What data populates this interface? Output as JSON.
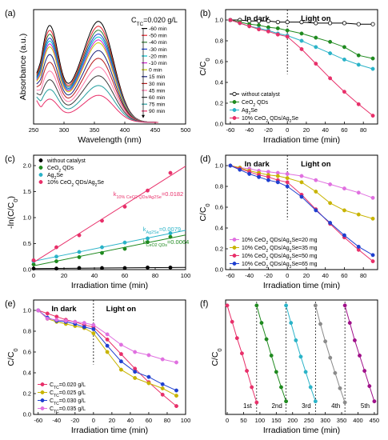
{
  "panels": [
    {
      "id": "a",
      "label": "(a)",
      "chart_data": {
        "type": "line",
        "xlabel": "Wavelength (nm)",
        "ylabel": "Absorbance (a.u.)",
        "xlim": [
          250,
          500
        ],
        "xticks": [
          250,
          300,
          350,
          400,
          450,
          500
        ],
        "yticks_shown": false,
        "annotation": "C_TC=0.020 g/L",
        "legend_position": "top-right",
        "series": [
          {
            "name": "-60 min",
            "color": "#000000",
            "peak1": 1.0,
            "peak2": 1.04
          },
          {
            "name": "-50 min",
            "color": "#e8202a",
            "peak1": 0.95,
            "peak2": 0.99
          },
          {
            "name": "-40 min",
            "color": "#2e7d32",
            "peak1": 0.91,
            "peak2": 0.95
          },
          {
            "name": "-30 min",
            "color": "#1e3fd0",
            "peak1": 0.87,
            "peak2": 0.91
          },
          {
            "name": "-20 min",
            "color": "#00c0d0",
            "peak1": 0.84,
            "peak2": 0.88
          },
          {
            "name": "-10 min",
            "color": "#d020d0",
            "peak1": 0.81,
            "peak2": 0.85
          },
          {
            "name": "0 min",
            "color": "#c8c800",
            "peak1": 0.78,
            "peak2": 0.82
          },
          {
            "name": "15 min",
            "color": "#1a237e",
            "peak1": 0.7,
            "peak2": 0.74
          },
          {
            "name": "30 min",
            "color": "#b71c1c",
            "peak1": 0.62,
            "peak2": 0.66
          },
          {
            "name": "45 min",
            "color": "#ff77aa",
            "peak1": 0.53,
            "peak2": 0.57
          },
          {
            "name": "60 min",
            "color": "#3c3c3c",
            "peak1": 0.44,
            "peak2": 0.48
          },
          {
            "name": "75 min",
            "color": "#26a0a0",
            "peak1": 0.34,
            "peak2": 0.38
          },
          {
            "name": "90 min",
            "color": "#e8306a",
            "peak1": 0.24,
            "peak2": 0.28
          }
        ]
      }
    },
    {
      "id": "b",
      "label": "(b)",
      "chart_data": {
        "type": "line",
        "xlabel": "Irradiation time (min)",
        "ylabel": "C/C0",
        "xlim": [
          -65,
          95
        ],
        "ylim": [
          0.0,
          1.1
        ],
        "xticks": [
          -60,
          -40,
          -20,
          0,
          20,
          40,
          60,
          80
        ],
        "yticks": [
          0.0,
          0.2,
          0.4,
          0.6,
          0.8,
          1.0
        ],
        "regions": [
          "In dark",
          "Light on"
        ],
        "divider_x": 0,
        "legend_position": "bottom-left",
        "x": [
          -60,
          -50,
          -40,
          -30,
          -20,
          -10,
          0,
          15,
          30,
          45,
          60,
          75,
          90
        ],
        "series": [
          {
            "name": "without catalyst",
            "color": "#000000",
            "marker": "circle-half",
            "values": [
              1.0,
              1.0,
              0.99,
              0.99,
              0.99,
              0.98,
              0.98,
              0.98,
              0.97,
              0.97,
              0.97,
              0.96,
              0.96
            ]
          },
          {
            "name": "CeO2 QDs",
            "color": "#1f8a1f",
            "marker": "circle",
            "values": [
              1.0,
              0.98,
              0.96,
              0.95,
              0.93,
              0.92,
              0.9,
              0.87,
              0.83,
              0.79,
              0.74,
              0.66,
              0.63
            ]
          },
          {
            "name": "Ag2Se",
            "color": "#2ab3c8",
            "marker": "circle",
            "values": [
              1.0,
              0.97,
              0.94,
              0.92,
              0.9,
              0.87,
              0.85,
              0.8,
              0.74,
              0.68,
              0.62,
              0.57,
              0.53
            ]
          },
          {
            "name": "10% CeO2 QDs/Ag2Se",
            "color": "#e8306a",
            "marker": "circle",
            "values": [
              1.0,
              0.97,
              0.94,
              0.91,
              0.89,
              0.86,
              0.84,
              0.72,
              0.58,
              0.44,
              0.31,
              0.19,
              0.08
            ]
          }
        ]
      }
    },
    {
      "id": "c",
      "label": "(c)",
      "chart_data": {
        "type": "scatter",
        "xlabel": "Irradiation time (min)",
        "ylabel": "-ln(C/C0)",
        "xlim": [
          0,
          100
        ],
        "ylim": [
          0.0,
          2.2
        ],
        "xticks": [
          0,
          20,
          40,
          60,
          80,
          100
        ],
        "yticks": [
          0.0,
          0.5,
          1.0,
          1.5,
          2.0
        ],
        "legend_position": "top-left",
        "series": [
          {
            "name": "without catalyst",
            "color": "#000000",
            "k_label": "",
            "x": [
              0,
              15,
              30,
              45,
              60,
              75,
              90
            ],
            "values": [
              0.02,
              0.02,
              0.03,
              0.03,
              0.03,
              0.04,
              0.04
            ]
          },
          {
            "name": "CeO2 QDs",
            "color": "#1f8a1f",
            "k_label": "kCeO2 QDs=0.0064",
            "x": [
              0,
              15,
              30,
              45,
              60,
              75,
              90
            ],
            "values": [
              0.1,
              0.16,
              0.24,
              0.32,
              0.4,
              0.53,
              0.63
            ]
          },
          {
            "name": "Ag2Se",
            "color": "#2ab3c8",
            "k_label": "kAg2Se=0.0079",
            "x": [
              0,
              15,
              30,
              45,
              60,
              75,
              90
            ],
            "values": [
              0.16,
              0.25,
              0.34,
              0.43,
              0.52,
              0.6,
              0.7
            ]
          },
          {
            "name": "10% CeO2 QDs/Ag2Se",
            "color": "#e8306a",
            "k_label": "k10% CeO2 QDs/Ag2Se=0.0182",
            "x": [
              0,
              15,
              30,
              45,
              60,
              75,
              90
            ],
            "values": [
              0.18,
              0.43,
              0.66,
              0.94,
              1.21,
              1.52,
              1.86
            ]
          }
        ]
      }
    },
    {
      "id": "d",
      "label": "(d)",
      "chart_data": {
        "type": "line",
        "xlabel": "Irradiation time (min)",
        "ylabel": "C/C0",
        "xlim": [
          -65,
          95
        ],
        "ylim": [
          0.0,
          1.1
        ],
        "xticks": [
          -60,
          -40,
          -20,
          0,
          20,
          40,
          60,
          80
        ],
        "yticks": [
          0.0,
          0.2,
          0.4,
          0.6,
          0.8,
          1.0
        ],
        "regions": [
          "In dark",
          "Light on"
        ],
        "divider_x": 0,
        "legend_position": "bottom-left",
        "x": [
          -60,
          -50,
          -40,
          -30,
          -20,
          -10,
          0,
          15,
          30,
          45,
          60,
          75,
          90
        ],
        "series": [
          {
            "name": "10% CeO2 QDs/Ag2Se=20 mg",
            "color": "#e070e0",
            "values": [
              1.0,
              0.98,
              0.97,
              0.95,
              0.94,
              0.93,
              0.92,
              0.9,
              0.86,
              0.82,
              0.78,
              0.74,
              0.69
            ]
          },
          {
            "name": "10% CeO2 QDs/Ag2Se=35 mg",
            "color": "#c8b400",
            "values": [
              1.0,
              0.98,
              0.95,
              0.93,
              0.91,
              0.9,
              0.88,
              0.84,
              0.75,
              0.64,
              0.57,
              0.53,
              0.49
            ]
          },
          {
            "name": "10% CeO2 QDs/Ag2Se=50 mg",
            "color": "#e8306a",
            "values": [
              1.0,
              0.97,
              0.94,
              0.91,
              0.89,
              0.86,
              0.84,
              0.72,
              0.58,
              0.44,
              0.31,
              0.19,
              0.08
            ]
          },
          {
            "name": "10% CeO2 QDs/Ag2Se=65 mg",
            "color": "#1e3fd0",
            "values": [
              1.0,
              0.96,
              0.92,
              0.89,
              0.86,
              0.84,
              0.8,
              0.7,
              0.57,
              0.45,
              0.33,
              0.22,
              0.14
            ]
          }
        ]
      }
    },
    {
      "id": "e",
      "label": "(e)",
      "chart_data": {
        "type": "line",
        "xlabel": "Irradiation time (min)",
        "ylabel": "C/C0",
        "xlim": [
          -65,
          100
        ],
        "ylim": [
          0.0,
          1.1
        ],
        "xticks": [
          -60,
          -40,
          -20,
          0,
          20,
          40,
          60,
          80,
          100
        ],
        "yticks": [
          0.0,
          0.2,
          0.4,
          0.6,
          0.8,
          1.0
        ],
        "regions": [
          "In dark",
          "Light on"
        ],
        "divider_x": 0,
        "legend_position": "bottom-left",
        "x": [
          -60,
          -50,
          -40,
          -30,
          -20,
          -10,
          0,
          15,
          30,
          45,
          60,
          75,
          90
        ],
        "series": [
          {
            "name": "CTC=0.020 g/L",
            "color": "#e8306a",
            "values": [
              1.0,
              0.97,
              0.94,
              0.91,
              0.89,
              0.86,
              0.84,
              0.72,
              0.58,
              0.44,
              0.31,
              0.19,
              0.08
            ]
          },
          {
            "name": "CTC=0.025 g/L",
            "color": "#c8b400",
            "values": [
              1.0,
              0.92,
              0.89,
              0.87,
              0.85,
              0.83,
              0.78,
              0.6,
              0.43,
              0.35,
              0.3,
              0.25,
              0.18
            ]
          },
          {
            "name": "CTC=0.030 g/L",
            "color": "#1e3fd0",
            "values": [
              1.0,
              0.93,
              0.9,
              0.89,
              0.87,
              0.84,
              0.82,
              0.66,
              0.51,
              0.41,
              0.36,
              0.29,
              0.23
            ]
          },
          {
            "name": "CTC=0.035 g/L",
            "color": "#e070e0",
            "values": [
              1.0,
              0.92,
              0.91,
              0.9,
              0.89,
              0.88,
              0.86,
              0.77,
              0.67,
              0.6,
              0.57,
              0.53,
              0.5
            ]
          }
        ]
      }
    },
    {
      "id": "f",
      "label": "(f)",
      "chart_data": {
        "type": "line",
        "xlabel": "Irradiation time (min)",
        "ylabel": "C/C0",
        "xlim": [
          -5,
          460
        ],
        "ylim": [
          0.0,
          1.05
        ],
        "xticks": [
          0,
          50,
          100,
          150,
          200,
          250,
          300,
          350,
          400,
          450
        ],
        "yticks_shown": false,
        "cycle_labels": [
          "1st",
          "2nd",
          "3rd",
          "4th",
          "5th"
        ],
        "cycle_dividers": [
          90,
          180,
          270,
          360
        ],
        "series": [
          {
            "name": "1st",
            "color": "#e8306a",
            "x": [
              0,
              15,
              30,
              45,
              60,
              75,
              90
            ],
            "values": [
              1.0,
              0.85,
              0.7,
              0.56,
              0.4,
              0.25,
              0.11
            ]
          },
          {
            "name": "2nd",
            "color": "#1f8a1f",
            "x": [
              90,
              105,
              120,
              135,
              150,
              165,
              180
            ],
            "values": [
              1.0,
              0.84,
              0.69,
              0.54,
              0.39,
              0.25,
              0.12
            ]
          },
          {
            "name": "3rd",
            "color": "#2ab3c8",
            "x": [
              180,
              195,
              210,
              225,
              240,
              255,
              270
            ],
            "values": [
              1.0,
              0.84,
              0.68,
              0.53,
              0.39,
              0.25,
              0.12
            ]
          },
          {
            "name": "4th",
            "color": "#8a8a8a",
            "x": [
              270,
              285,
              300,
              315,
              330,
              345,
              360
            ],
            "values": [
              1.0,
              0.83,
              0.67,
              0.52,
              0.38,
              0.24,
              0.11
            ]
          },
          {
            "name": "5th",
            "color": "#a0108a",
            "x": [
              360,
              375,
              390,
              405,
              420,
              435,
              450
            ],
            "values": [
              1.0,
              0.84,
              0.68,
              0.54,
              0.4,
              0.26,
              0.12
            ]
          }
        ]
      }
    }
  ]
}
